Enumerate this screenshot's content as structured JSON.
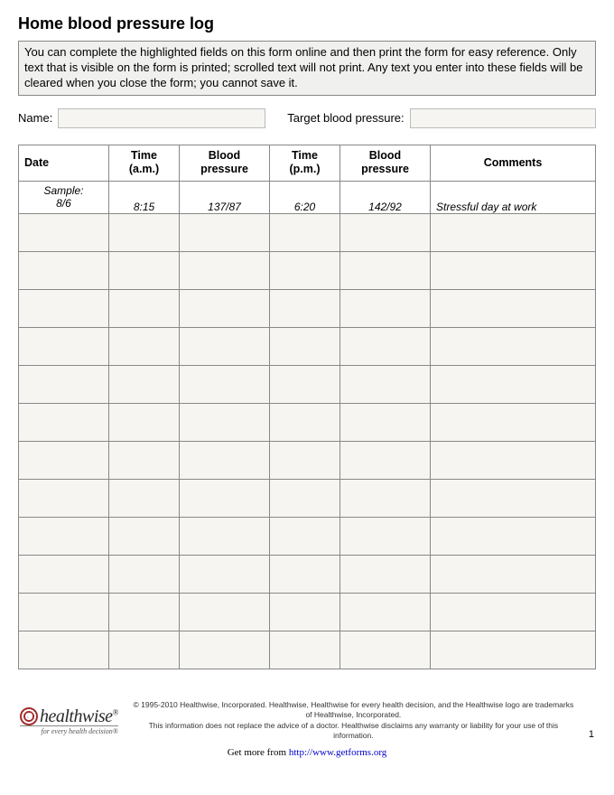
{
  "title": "Home blood pressure log",
  "instructions": "You can complete the highlighted fields on this form online and then print the form for easy reference. Only text that is visible on the form is printed; scrolled text will not print. Any text you enter into these fields will be cleared when you close the form; you cannot save it.",
  "form": {
    "name_label": "Name:",
    "name_value": "",
    "target_label": "Target blood pressure:",
    "target_value": ""
  },
  "table": {
    "type": "table",
    "columns": [
      {
        "key": "date",
        "label": "Date",
        "class": "col-date",
        "header_class": "date-h"
      },
      {
        "key": "time_am",
        "label": "Time\n(a.m.)",
        "class": "col-time"
      },
      {
        "key": "bp_am",
        "label": "Blood\npressure",
        "class": "col-bp"
      },
      {
        "key": "time_pm",
        "label": "Time\n(p.m.)",
        "class": "col-time"
      },
      {
        "key": "bp_pm",
        "label": "Blood\npressure",
        "class": "col-bp"
      },
      {
        "key": "comments",
        "label": "Comments",
        "class": "col-comments"
      }
    ],
    "sample": {
      "date": "Sample:\n8/6",
      "time_am": "8:15",
      "bp_am": "137/87",
      "time_pm": "6:20",
      "bp_pm": "142/92",
      "comments": "Stressful day at work"
    },
    "blank_rows": 12,
    "border_color": "#888888",
    "input_bg": "#f6f5f1"
  },
  "logo": {
    "brand": "healthwise",
    "reg": "®",
    "tagline": "for every health decision®"
  },
  "copyright": {
    "line1": "© 1995-2010 Healthwise, Incorporated. Healthwise, Healthwise for every health decision, and the Healthwise logo are trademarks of Healthwise, Incorporated.",
    "line2": "This information does not replace the advice of a doctor. Healthwise disclaims any warranty or liability for your use of this information."
  },
  "page_number": "1",
  "getmore": {
    "prefix": "Get more from ",
    "link_text": "http://www.getforms.org"
  }
}
